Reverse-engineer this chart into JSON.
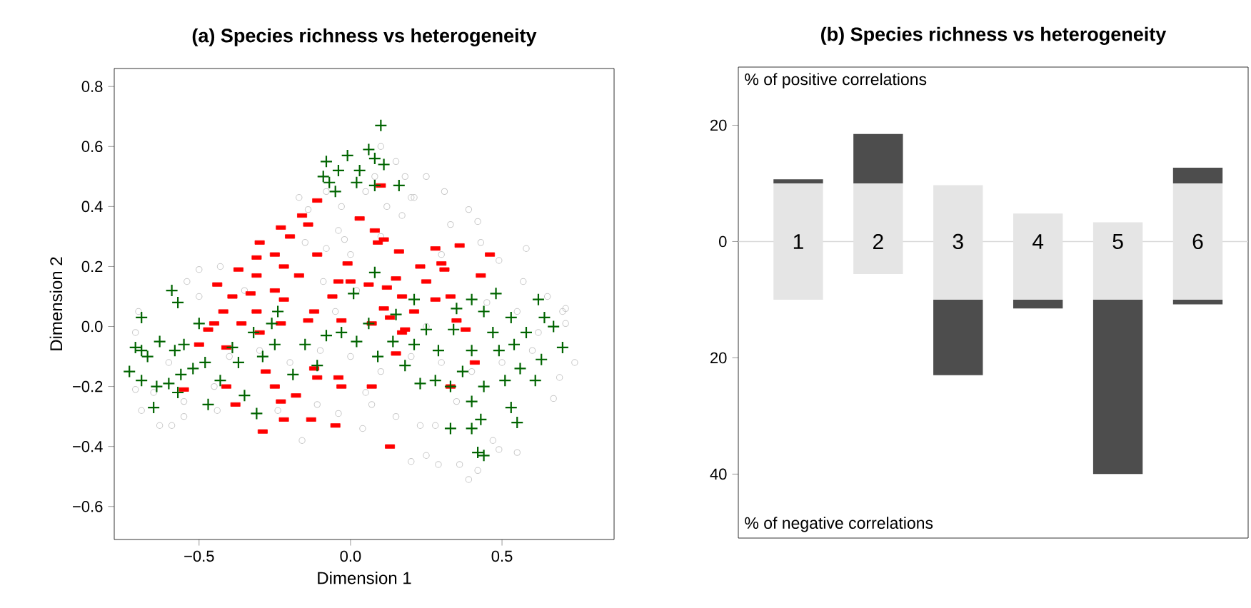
{
  "chart_data": [
    {
      "type": "scatter",
      "title": "(a) Species richness vs heterogeneity",
      "xlabel": "Dimension 1",
      "ylabel": "Dimension 2",
      "xlim": [
        -0.78,
        0.87
      ],
      "ylim": [
        -0.71,
        0.86
      ],
      "xticks": [
        {
          "value": -0.5,
          "label": "−0.5"
        },
        {
          "value": 0,
          "label": "0.0"
        },
        {
          "value": 0.5,
          "label": "0.5"
        }
      ],
      "yticks": [
        {
          "value": -0.6,
          "label": "−0.6"
        },
        {
          "value": -0.4,
          "label": "−0.4"
        },
        {
          "value": -0.2,
          "label": "−0.2"
        },
        {
          "value": 0,
          "label": "0.0"
        },
        {
          "value": 0.2,
          "label": "0.2"
        },
        {
          "value": 0.4,
          "label": "0.4"
        },
        {
          "value": 0.6,
          "label": "0.6"
        },
        {
          "value": 0.8,
          "label": "0.8"
        }
      ],
      "series": [
        {
          "color": "#c8c8c8",
          "marker": "circle",
          "x": [
            0.1,
            0.15,
            0.18,
            0.2,
            0.05,
            -0.03,
            -0.08,
            0.12,
            0.31,
            0.39,
            0.33,
            0.42,
            0.58,
            0.43,
            0.49,
            0.21,
            0.17,
            0.57,
            0.7,
            0.71,
            0.3,
            -0.5,
            -0.54,
            -0.43,
            -0.71,
            -0.7,
            -0.17,
            -0.14,
            -0.04,
            -0.02,
            -0.08,
            0.0,
            -0.09,
            0.02,
            -0.16,
            -0.11,
            -0.04,
            0.04,
            -0.59,
            -0.63,
            -0.71,
            -0.69,
            -0.24,
            -0.44,
            -0.55,
            -0.5,
            0.39,
            0.42,
            0.2,
            0.25,
            0.29,
            0.36,
            0.55,
            0.49,
            0.47,
            0.23,
            0.28,
            0.15,
            0.07,
            0.74,
            0.69,
            0.67,
            0.71,
            0.62,
            -0.4,
            -0.3,
            -0.2,
            -0.1,
            0.0,
            0.1,
            0.2,
            0.3,
            0.4,
            0.5,
            0.6,
            0.55,
            0.45,
            0.25,
            -0.05,
            -0.6,
            -0.65,
            -0.55,
            -0.45,
            0.65,
            0.1,
            -0.15,
            0.35,
            0.05,
            -0.35,
            0.25,
            0.08
          ],
          "values": [
            0.6,
            0.55,
            0.5,
            0.43,
            0.45,
            0.4,
            0.45,
            0.4,
            0.45,
            0.39,
            0.34,
            0.35,
            0.26,
            0.28,
            0.22,
            0.43,
            0.37,
            0.15,
            0.05,
            0.01,
            0.24,
            0.19,
            0.15,
            0.2,
            -0.02,
            0.05,
            0.43,
            0.39,
            0.32,
            0.29,
            0.26,
            0.24,
            0.15,
            0.12,
            -0.38,
            -0.26,
            -0.29,
            -0.34,
            -0.33,
            -0.33,
            -0.21,
            -0.28,
            -0.28,
            -0.28,
            -0.25,
            0.1,
            -0.51,
            -0.48,
            -0.45,
            -0.43,
            -0.46,
            -0.46,
            -0.42,
            -0.41,
            -0.38,
            -0.33,
            -0.33,
            -0.3,
            -0.26,
            -0.12,
            -0.17,
            -0.24,
            0.06,
            -0.02,
            -0.1,
            -0.08,
            -0.12,
            -0.08,
            -0.1,
            -0.15,
            -0.1,
            -0.12,
            -0.15,
            -0.12,
            -0.08,
            0.05,
            0.08,
            0.0,
            0.05,
            -0.12,
            -0.22,
            -0.3,
            -0.2,
            0.1,
            0.3,
            0.28,
            -0.25,
            -0.22,
            0.12,
            0.5,
            0.5
          ]
        },
        {
          "color": "#ff0000",
          "x": [
            -0.11,
            -0.16,
            -0.14,
            -0.23,
            -0.2,
            -0.3,
            -0.25,
            -0.31,
            -0.11,
            -0.22,
            -0.37,
            -0.31,
            -0.44,
            -0.17,
            -0.25,
            -0.33,
            -0.39,
            -0.22,
            -0.04,
            0.0,
            -0.01,
            0.03,
            -0.12,
            -0.06,
            -0.31,
            -0.42,
            -0.45,
            -0.36,
            -0.23,
            -0.14,
            -0.03,
            -0.47,
            -0.3,
            0.1,
            0.08,
            0.11,
            0.09,
            0.16,
            0.28,
            0.36,
            0.46,
            0.3,
            0.31,
            0.23,
            0.43,
            0.25,
            0.15,
            0.06,
            0.12,
            0.17,
            0.33,
            0.28,
            0.11,
            0.21,
            0.35,
            0.13,
            0.07,
            0.18,
            0.38,
            -0.41,
            -0.38,
            -0.29,
            -0.25,
            -0.23,
            -0.18,
            -0.22,
            -0.13,
            -0.05,
            -0.12,
            -0.03,
            -0.11,
            -0.55,
            -0.5,
            -0.41,
            -0.28,
            -0.04,
            0.13,
            0.41,
            0.07,
            0.33,
            0.15,
            0.17
          ],
          "values": [
            0.42,
            0.37,
            0.34,
            0.33,
            0.3,
            0.28,
            0.24,
            0.23,
            0.24,
            0.2,
            0.19,
            0.17,
            0.14,
            0.17,
            0.12,
            0.11,
            0.1,
            0.09,
            0.15,
            0.15,
            0.21,
            0.36,
            0.05,
            0.1,
            0.05,
            0.05,
            0.01,
            0.01,
            0.01,
            0.02,
            0.02,
            -0.01,
            -0.02,
            0.47,
            0.32,
            0.29,
            0.28,
            0.25,
            0.26,
            0.27,
            0.24,
            0.21,
            0.19,
            0.2,
            0.17,
            0.15,
            0.16,
            0.14,
            0.13,
            0.1,
            0.1,
            0.09,
            0.06,
            0.05,
            0.02,
            0.03,
            0.01,
            -0.01,
            -0.01,
            -0.2,
            -0.26,
            -0.35,
            -0.2,
            -0.25,
            -0.23,
            -0.31,
            -0.31,
            -0.33,
            -0.14,
            -0.2,
            -0.17,
            -0.21,
            -0.06,
            -0.07,
            -0.15,
            -0.17,
            -0.4,
            -0.12,
            -0.2,
            -0.2,
            -0.09,
            -0.02
          ]
        },
        {
          "color": "#006400",
          "marker": "cross",
          "x": [
            0.1,
            0.06,
            -0.01,
            -0.08,
            -0.04,
            0.03,
            0.11,
            -0.09,
            0.08,
            -0.07,
            0.02,
            -0.05,
            0.16,
            0.08,
            -0.69,
            -0.59,
            -0.57,
            -0.63,
            -0.69,
            -0.71,
            -0.67,
            -0.73,
            -0.69,
            -0.64,
            -0.65,
            -0.6,
            -0.58,
            -0.55,
            -0.52,
            -0.57,
            -0.56,
            -0.5,
            -0.48,
            -0.47,
            -0.43,
            -0.39,
            -0.37,
            -0.31,
            -0.35,
            -0.29,
            -0.25,
            -0.19,
            -0.15,
            -0.11,
            -0.08,
            -0.03,
            0.02,
            0.06,
            0.09,
            0.14,
            0.18,
            0.21,
            0.25,
            0.29,
            0.34,
            0.35,
            0.4,
            0.44,
            0.48,
            0.53,
            0.62,
            0.64,
            0.7,
            0.67,
            0.58,
            0.54,
            0.49,
            0.47,
            0.4,
            0.37,
            0.33,
            0.28,
            0.23,
            0.4,
            0.44,
            0.51,
            0.56,
            0.61,
            0.63,
            0.53,
            0.55,
            0.4,
            0.33,
            0.43,
            0.44,
            0.42,
            0.21,
            0.01,
            0.08,
            0.15,
            -0.24,
            -0.26,
            -0.32
          ],
          "values": [
            0.67,
            0.59,
            0.57,
            0.55,
            0.52,
            0.52,
            0.54,
            0.5,
            0.47,
            0.48,
            0.48,
            0.45,
            0.47,
            0.56,
            0.03,
            0.12,
            0.08,
            -0.05,
            -0.08,
            -0.07,
            -0.1,
            -0.15,
            -0.18,
            -0.2,
            -0.27,
            -0.19,
            -0.08,
            -0.06,
            -0.14,
            -0.22,
            -0.16,
            0.01,
            -0.12,
            -0.26,
            -0.18,
            -0.07,
            -0.12,
            -0.29,
            -0.23,
            -0.1,
            -0.06,
            -0.16,
            -0.06,
            -0.13,
            -0.03,
            -0.02,
            -0.05,
            0.01,
            -0.1,
            -0.05,
            -0.13,
            -0.06,
            -0.01,
            -0.08,
            -0.01,
            0.06,
            0.09,
            0.05,
            0.11,
            0.03,
            0.09,
            0.03,
            -0.07,
            0.0,
            -0.02,
            -0.06,
            -0.08,
            -0.02,
            -0.08,
            -0.15,
            -0.2,
            -0.18,
            -0.19,
            -0.25,
            -0.2,
            -0.18,
            -0.14,
            -0.18,
            -0.11,
            -0.27,
            -0.32,
            -0.34,
            -0.34,
            -0.31,
            -0.43,
            -0.42,
            0.09,
            0.11,
            0.18,
            0.04,
            0.05,
            0.01,
            -0.02
          ]
        }
      ]
    },
    {
      "type": "bar",
      "title": "(b) Species richness vs heterogeneity",
      "categories": [
        "1",
        "2",
        "3",
        "4",
        "5",
        "6"
      ],
      "ylim": [
        -51,
        30
      ],
      "yticks": [
        {
          "value": -40,
          "label": "40"
        },
        {
          "value": -20,
          "label": "20"
        },
        0,
        20
      ],
      "tick_labels": "y",
      "annotations": [
        "% of positive correlations",
        "% of negative correlations"
      ],
      "ref_lines": [
        {
          "axis": "y",
          "value": 0,
          "color": "#d9d9d9"
        }
      ],
      "series": [
        {
          "color": "#e5e5e5",
          "base": [
            -10,
            -5.6,
            -10,
            -10,
            -10,
            -10
          ],
          "values": [
            20,
            15.6,
            19.7,
            14.8,
            13.3,
            20
          ]
        },
        {
          "color": "#4d4d4d",
          "base": [
            10,
            10,
            null,
            null,
            null,
            10
          ],
          "values": [
            0.7,
            8.5,
            null,
            null,
            null,
            2.7
          ]
        },
        {
          "color": "#4d4d4d",
          "base": [
            null,
            null,
            -10,
            -10,
            -10,
            -10
          ],
          "values": [
            null,
            null,
            -13,
            -1.5,
            -30,
            -0.8
          ]
        }
      ]
    }
  ]
}
